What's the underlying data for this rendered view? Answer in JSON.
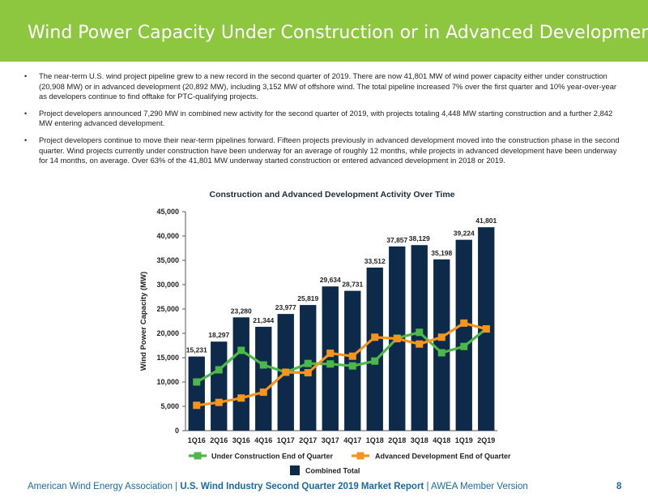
{
  "header": {
    "title": "Wind Power Capacity Under Construction or in Advanced Development"
  },
  "bullets": [
    "The near-term U.S. wind project pipeline grew to a new record in the second quarter of 2019.  There are now 41,801 MW of wind power capacity either under construction (20,908 MW) or in advanced development (20,892 MW), including 3,152 MW of offshore wind. The total pipeline increased 7% over the first quarter and 10% year-over-year as developers continue to find offtake for PTC-qualifying projects.",
    "Project developers announced 7,290 MW in combined new activity for the second quarter of 2019, with projects totaling 4,448 MW starting construction and a further 2,842 MW entering advanced development.",
    "Project developers continue to move their near-term pipelines forward. Fifteen projects previously in advanced development moved into the construction phase in the second quarter. Wind projects currently under construction have been underway for an average of roughly 12 months, while projects in advanced development have been underway for 14 months, on average. Over 63% of the 41,801 MW underway started construction or entered advanced development in 2018 or 2019."
  ],
  "bullet_glyph": "•",
  "chart_data": {
    "type": "bar",
    "title": "Construction and Advanced Development Activity Over Time",
    "ylabel": "Wind Power Capacity (MW)",
    "xlabel": "",
    "ylim": [
      0,
      45000
    ],
    "yticks": [
      0,
      5000,
      10000,
      15000,
      20000,
      25000,
      30000,
      35000,
      40000,
      45000
    ],
    "ytick_labels": [
      "0",
      "5,000",
      "10,000",
      "15,000",
      "20,000",
      "25,000",
      "30,000",
      "35,000",
      "40,000",
      "45,000"
    ],
    "categories": [
      "1Q16",
      "2Q16",
      "3Q16",
      "4Q16",
      "1Q17",
      "2Q17",
      "3Q17",
      "4Q17",
      "1Q18",
      "2Q18",
      "3Q18",
      "4Q18",
      "1Q19",
      "2Q19"
    ],
    "series": [
      {
        "name": "Combined Total",
        "kind": "bar",
        "color": "#0e2a4a",
        "values": [
          15231,
          18297,
          23280,
          21344,
          23977,
          25819,
          29634,
          28731,
          33512,
          37857,
          38129,
          35198,
          39224,
          41801
        ],
        "labels": [
          "15,231",
          "18,297",
          "23,280",
          "21,344",
          "23,977",
          "25,819",
          "29,634",
          "28,731",
          "33,512",
          "37,857",
          "38,129",
          "35,198",
          "39,224",
          "41,801"
        ]
      },
      {
        "name": "Under Construction End of Quarter",
        "kind": "line",
        "color": "#4cb848",
        "values": [
          10000,
          12500,
          16500,
          13500,
          12000,
          13800,
          13700,
          13300,
          14300,
          19000,
          20200,
          16000,
          17300,
          20908
        ]
      },
      {
        "name": "Advanced Development End of Quarter",
        "kind": "line",
        "color": "#f7941d",
        "values": [
          5200,
          5800,
          6700,
          7900,
          12000,
          11900,
          15900,
          15300,
          19200,
          18900,
          17800,
          19200,
          22100,
          20892
        ]
      }
    ],
    "legend": "bottom",
    "grid": false
  },
  "footer": {
    "org": "American Wind Energy Association",
    "sep1": "|",
    "report": "U.S. Wind Industry Second Quarter 2019 Market Report",
    "sep2": "|",
    "version": "AWEA Member Version",
    "page": "8"
  }
}
